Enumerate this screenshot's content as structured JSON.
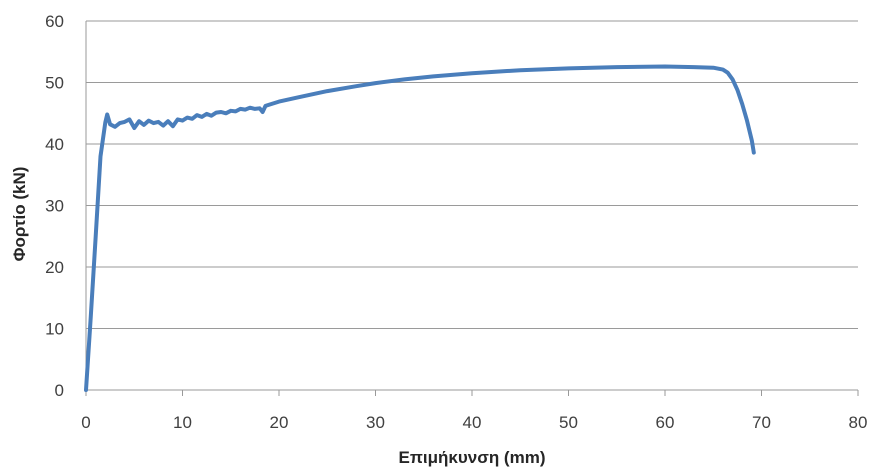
{
  "chart_data": {
    "type": "line",
    "title": "",
    "xlabel": "Επιμήκυνση (mm)",
    "ylabel": "Φορτίο (kN)",
    "xlim": [
      0,
      80
    ],
    "ylim": [
      0,
      60
    ],
    "xticks": [
      0,
      10,
      20,
      30,
      40,
      50,
      60,
      70,
      80
    ],
    "yticks": [
      0,
      10,
      20,
      30,
      40,
      50,
      60
    ],
    "grid": "horizontal",
    "legend": "none",
    "series": [
      {
        "color": "#4a7ebb",
        "x": [
          0,
          0.5,
          1.0,
          1.5,
          2.0,
          2.2,
          2.5,
          3.0,
          3.5,
          4.0,
          4.5,
          5.0,
          5.5,
          6.0,
          6.5,
          7.0,
          7.5,
          8.0,
          8.5,
          9.0,
          9.5,
          10,
          10.5,
          11,
          11.5,
          12,
          12.5,
          13,
          13.5,
          14,
          14.5,
          15,
          15.5,
          16,
          16.5,
          17,
          17.5,
          18,
          18.3,
          18.6,
          19,
          20,
          22,
          25,
          28,
          30,
          33,
          36,
          40,
          45,
          50,
          55,
          60,
          63,
          65,
          66,
          66.5,
          67,
          67.5,
          68,
          68.5,
          69,
          69.2
        ],
        "y": [
          0,
          12,
          25,
          38,
          43.5,
          44.8,
          43.2,
          42.8,
          43.4,
          43.6,
          44.0,
          42.6,
          43.7,
          43.1,
          43.8,
          43.4,
          43.6,
          43.0,
          43.7,
          42.9,
          44.0,
          43.8,
          44.3,
          44.1,
          44.7,
          44.4,
          44.9,
          44.6,
          45.1,
          45.2,
          45.0,
          45.4,
          45.3,
          45.7,
          45.6,
          45.9,
          45.7,
          45.8,
          45.2,
          46.2,
          46.4,
          46.9,
          47.6,
          48.6,
          49.4,
          49.9,
          50.5,
          51.0,
          51.5,
          52.0,
          52.3,
          52.5,
          52.6,
          52.5,
          52.4,
          52.1,
          51.6,
          50.5,
          48.8,
          46.5,
          43.8,
          40.5,
          38.6
        ]
      }
    ]
  }
}
